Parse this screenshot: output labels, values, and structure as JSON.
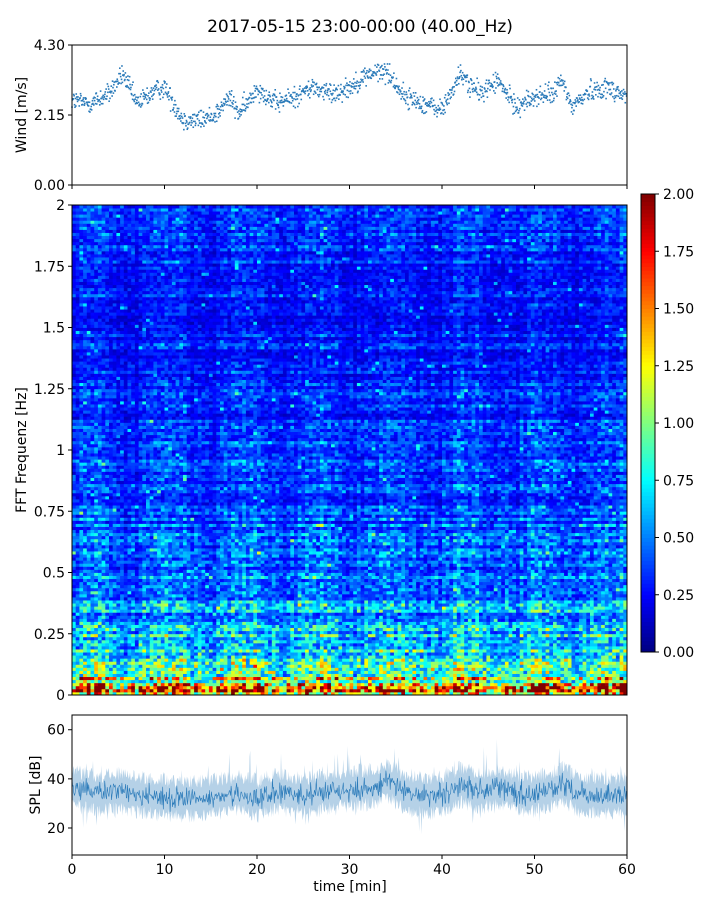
{
  "title": "2017-05-15 23:00-00:00 (40.00_Hz)",
  "chart_data": [
    {
      "type": "scatter",
      "panel": "wind",
      "ylabel": "Wind [m/s]",
      "ylim": [
        0,
        4.3
      ],
      "yticks": [
        "0.00",
        "2.15",
        "4.30"
      ],
      "xlim": [
        0,
        60
      ],
      "marker_color": "#2a7ab9",
      "trend": [
        {
          "x": 0,
          "y": 2.6
        },
        {
          "x": 2,
          "y": 2.5
        },
        {
          "x": 4,
          "y": 2.8
        },
        {
          "x": 5.5,
          "y": 3.4
        },
        {
          "x": 7,
          "y": 2.5
        },
        {
          "x": 9,
          "y": 2.9
        },
        {
          "x": 10,
          "y": 3.0
        },
        {
          "x": 12,
          "y": 2.0
        },
        {
          "x": 14,
          "y": 2.0
        },
        {
          "x": 15,
          "y": 2.1
        },
        {
          "x": 16,
          "y": 2.3
        },
        {
          "x": 17,
          "y": 2.7
        },
        {
          "x": 18,
          "y": 2.2
        },
        {
          "x": 19,
          "y": 2.5
        },
        {
          "x": 20,
          "y": 3.0
        },
        {
          "x": 22,
          "y": 2.5
        },
        {
          "x": 24,
          "y": 2.7
        },
        {
          "x": 26,
          "y": 3.0
        },
        {
          "x": 28,
          "y": 2.8
        },
        {
          "x": 30,
          "y": 3.0
        },
        {
          "x": 32,
          "y": 3.4
        },
        {
          "x": 34,
          "y": 3.5
        },
        {
          "x": 36,
          "y": 2.7
        },
        {
          "x": 38,
          "y": 2.5
        },
        {
          "x": 40,
          "y": 2.3
        },
        {
          "x": 42,
          "y": 3.4
        },
        {
          "x": 44,
          "y": 2.8
        },
        {
          "x": 46,
          "y": 3.2
        },
        {
          "x": 48,
          "y": 2.4
        },
        {
          "x": 50,
          "y": 2.7
        },
        {
          "x": 52,
          "y": 2.8
        },
        {
          "x": 53,
          "y": 3.2
        },
        {
          "x": 54,
          "y": 2.4
        },
        {
          "x": 56,
          "y": 2.9
        },
        {
          "x": 58,
          "y": 3.0
        },
        {
          "x": 60,
          "y": 2.7
        }
      ]
    },
    {
      "type": "heatmap",
      "panel": "spectrogram",
      "ylabel": "FFT Frequenz [Hz]",
      "ylim": [
        0,
        2
      ],
      "yticks": [
        "0",
        "0.25",
        "0.5",
        "0.75",
        "1",
        "1.25",
        "1.5",
        "1.75",
        "2"
      ],
      "xlim": [
        0,
        60
      ],
      "colormap": "jet",
      "profile": [
        {
          "f": 0.0,
          "mean": 1.6
        },
        {
          "f": 0.05,
          "mean": 1.1
        },
        {
          "f": 0.1,
          "mean": 0.85
        },
        {
          "f": 0.2,
          "mean": 0.65
        },
        {
          "f": 0.3,
          "mean": 0.55
        },
        {
          "f": 0.5,
          "mean": 0.45
        },
        {
          "f": 0.75,
          "mean": 0.38
        },
        {
          "f": 1.0,
          "mean": 0.33
        },
        {
          "f": 1.5,
          "mean": 0.28
        },
        {
          "f": 2.0,
          "mean": 0.32
        }
      ],
      "colorbar": {
        "range": [
          0,
          2
        ],
        "ticks": [
          "0.00",
          "0.25",
          "0.50",
          "0.75",
          "1.00",
          "1.25",
          "1.50",
          "1.75",
          "2.00"
        ]
      }
    },
    {
      "type": "line",
      "panel": "spl",
      "ylabel": "SPL [dB]",
      "xlabel": "time [min]",
      "xlim": [
        0,
        60
      ],
      "ylim": [
        9,
        66
      ],
      "yticks": [
        "20",
        "40",
        "60"
      ],
      "xticks": [
        "0",
        "10",
        "20",
        "30",
        "40",
        "50",
        "60"
      ],
      "line_color": "#2a7ab9",
      "trend": [
        {
          "x": 0,
          "y": 36
        },
        {
          "x": 3,
          "y": 34
        },
        {
          "x": 5,
          "y": 35
        },
        {
          "x": 8,
          "y": 33
        },
        {
          "x": 10,
          "y": 32
        },
        {
          "x": 13,
          "y": 32
        },
        {
          "x": 16,
          "y": 33
        },
        {
          "x": 18,
          "y": 34
        },
        {
          "x": 20,
          "y": 32
        },
        {
          "x": 22,
          "y": 35
        },
        {
          "x": 25,
          "y": 33
        },
        {
          "x": 28,
          "y": 35
        },
        {
          "x": 30,
          "y": 36
        },
        {
          "x": 33,
          "y": 37
        },
        {
          "x": 34,
          "y": 40
        },
        {
          "x": 36,
          "y": 34
        },
        {
          "x": 39,
          "y": 33
        },
        {
          "x": 41,
          "y": 35
        },
        {
          "x": 42,
          "y": 38
        },
        {
          "x": 44,
          "y": 35
        },
        {
          "x": 46,
          "y": 37
        },
        {
          "x": 48,
          "y": 34
        },
        {
          "x": 50,
          "y": 34
        },
        {
          "x": 52,
          "y": 36
        },
        {
          "x": 53,
          "y": 38
        },
        {
          "x": 55,
          "y": 33
        },
        {
          "x": 58,
          "y": 33
        },
        {
          "x": 60,
          "y": 33
        }
      ]
    }
  ]
}
